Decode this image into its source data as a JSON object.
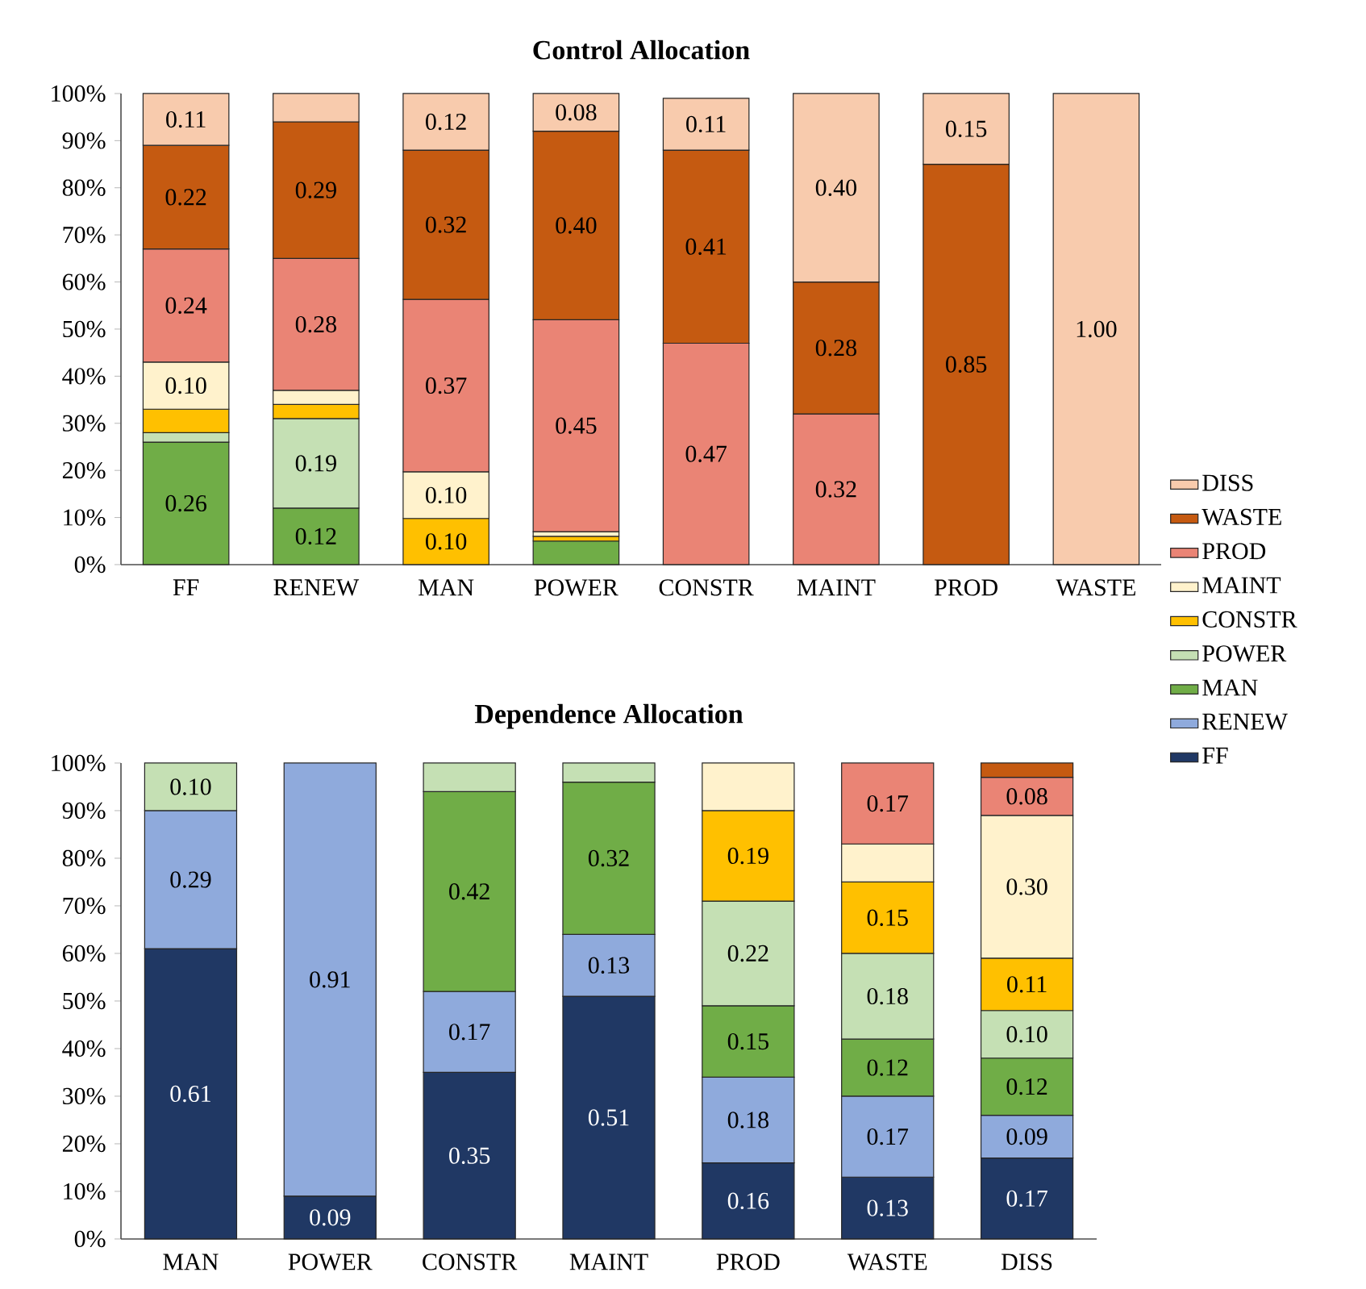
{
  "chart_data": [
    {
      "type": "bar",
      "title": "Control Allocation",
      "stacked": true,
      "categories": [
        "FF",
        "RENEW",
        "MAN",
        "POWER",
        "CONSTR",
        "MAINT",
        "PROD",
        "WASTE"
      ],
      "ylim": [
        0,
        1
      ],
      "yticks": [
        {
          "value": 0,
          "label": "0%"
        },
        {
          "value": 0.1,
          "label": "10%"
        },
        {
          "value": 0.2,
          "label": "20%"
        },
        {
          "value": 0.3,
          "label": "30%"
        },
        {
          "value": 0.4,
          "label": "40%"
        },
        {
          "value": 0.5,
          "label": "50%"
        },
        {
          "value": 0.6,
          "label": "60%"
        },
        {
          "value": 0.7,
          "label": "70%"
        },
        {
          "value": 0.8,
          "label": "80%"
        },
        {
          "value": 0.9,
          "label": "90%"
        },
        {
          "value": 1,
          "label": "100%"
        }
      ],
      "series": [
        {
          "color": "#70ad47",
          "values": [
            0.26,
            0.12,
            null,
            0.05,
            null,
            null,
            null,
            null
          ],
          "value_labels": [
            "0.26",
            "0.12",
            null,
            null,
            null,
            null,
            null,
            null
          ]
        },
        {
          "color": "#c5e0b4",
          "values": [
            0.02,
            0.19,
            null,
            null,
            null,
            null,
            null,
            null
          ],
          "value_labels": [
            null,
            "0.19",
            null,
            null,
            null,
            null,
            null,
            null
          ]
        },
        {
          "color": "#ffc000",
          "values": [
            0.05,
            0.03,
            0.098,
            0.01,
            null,
            null,
            null,
            null
          ],
          "value_labels": [
            null,
            null,
            "0.10",
            null,
            null,
            null,
            null,
            null
          ]
        },
        {
          "color": "#fff2cc",
          "values": [
            0.1,
            0.03,
            0.099,
            0.01,
            null,
            null,
            null,
            null
          ],
          "value_labels": [
            "0.10",
            null,
            "0.10",
            null,
            null,
            null,
            null,
            null
          ]
        },
        {
          "color": "#ea8475",
          "values": [
            0.24,
            0.28,
            0.366,
            0.45,
            0.47,
            0.32,
            null,
            null
          ],
          "value_labels": [
            "0.24",
            "0.28",
            "0.37",
            "0.45",
            "0.47",
            "0.32",
            null,
            null
          ]
        },
        {
          "color": "#c55a11",
          "values": [
            0.22,
            0.29,
            0.317,
            0.4,
            0.41,
            0.28,
            0.85,
            null
          ],
          "value_labels": [
            "0.22",
            "0.29",
            "0.32",
            "0.40",
            "0.41",
            "0.28",
            "0.85",
            null
          ]
        },
        {
          "color": "#f8cbad",
          "values": [
            0.11,
            0.06,
            0.12,
            0.08,
            0.11,
            0.4,
            0.15,
            1.0
          ],
          "value_labels": [
            "0.11",
            null,
            "0.12",
            "0.08",
            "0.11",
            "0.40",
            "0.15",
            "1.00"
          ]
        }
      ]
    },
    {
      "type": "bar",
      "title": "Dependence Allocation",
      "stacked": true,
      "legend": "right",
      "categories": [
        "MAN",
        "POWER",
        "CONSTR",
        "MAINT",
        "PROD",
        "WASTE",
        "DISS"
      ],
      "ylim": [
        0,
        1
      ],
      "yticks": [
        {
          "value": 0,
          "label": "0%"
        },
        {
          "value": 0.1,
          "label": "10%"
        },
        {
          "value": 0.2,
          "label": "20%"
        },
        {
          "value": 0.3,
          "label": "30%"
        },
        {
          "value": 0.4,
          "label": "40%"
        },
        {
          "value": 0.5,
          "label": "50%"
        },
        {
          "value": 0.6,
          "label": "60%"
        },
        {
          "value": 0.7,
          "label": "70%"
        },
        {
          "value": 0.8,
          "label": "80%"
        },
        {
          "value": 0.9,
          "label": "90%"
        },
        {
          "value": 1,
          "label": "100%"
        }
      ],
      "series": [
        {
          "name": "FF",
          "color": "#203864",
          "values": [
            0.61,
            0.09,
            0.35,
            0.51,
            0.16,
            0.13,
            0.17
          ],
          "value_labels": [
            "0.61",
            "0.09",
            "0.35",
            "0.51",
            "0.16",
            "0.13",
            "0.17"
          ]
        },
        {
          "name": "RENEW",
          "color": "#8faadc",
          "values": [
            0.29,
            0.91,
            0.17,
            0.13,
            0.18,
            0.17,
            0.09
          ],
          "value_labels": [
            "0.29",
            "0.91",
            "0.17",
            "0.13",
            "0.18",
            "0.17",
            "0.09"
          ]
        },
        {
          "name": "MAN",
          "color": "#70ad47",
          "values": [
            null,
            null,
            0.42,
            0.32,
            0.15,
            0.12,
            0.12
          ],
          "value_labels": [
            null,
            null,
            "0.42",
            "0.32",
            "0.15",
            "0.12",
            "0.12"
          ]
        },
        {
          "name": "POWER",
          "color": "#c5e0b4",
          "values": [
            0.1,
            null,
            0.06,
            0.04,
            0.22,
            0.18,
            0.1
          ],
          "value_labels": [
            "0.10",
            null,
            null,
            null,
            "0.22",
            "0.18",
            "0.10"
          ]
        },
        {
          "name": "CONSTR",
          "color": "#ffc000",
          "values": [
            null,
            null,
            null,
            null,
            0.19,
            0.15,
            0.11
          ],
          "value_labels": [
            null,
            null,
            null,
            null,
            "0.19",
            "0.15",
            "0.11"
          ]
        },
        {
          "name": "MAINT",
          "color": "#fff2cc",
          "values": [
            null,
            null,
            null,
            null,
            0.1,
            0.08,
            0.3
          ],
          "value_labels": [
            null,
            null,
            null,
            null,
            null,
            null,
            "0.30"
          ]
        },
        {
          "name": "PROD",
          "color": "#ea8475",
          "values": [
            null,
            null,
            null,
            null,
            null,
            0.17,
            0.08
          ],
          "value_labels": [
            null,
            null,
            null,
            null,
            null,
            "0.17",
            "0.08"
          ]
        },
        {
          "name": "WASTE",
          "color": "#c55a11",
          "values": [
            null,
            null,
            null,
            null,
            null,
            null,
            0.03
          ],
          "value_labels": [
            null,
            null,
            null,
            null,
            null,
            null,
            null
          ]
        },
        {
          "name": "DISS",
          "color": "#f8cbad",
          "values": [
            null,
            null,
            null,
            null,
            null,
            null,
            null
          ],
          "value_labels": [
            null,
            null,
            null,
            null,
            null,
            null,
            null
          ]
        }
      ]
    }
  ]
}
